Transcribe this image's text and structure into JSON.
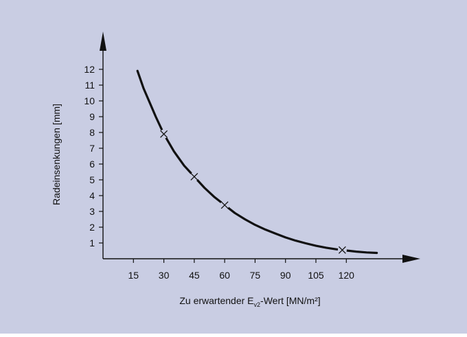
{
  "colors": {
    "panel_background": "#c9cde3",
    "ink": "#111111"
  },
  "chart_data": {
    "type": "line",
    "xlabel_main": "Zu erwartender E",
    "xlabel_sub": "v2",
    "xlabel_tail": "-Wert [MN/m²]",
    "ylabel": "Radeinsenkungen [mm]",
    "x_ticks": [
      15,
      30,
      45,
      60,
      75,
      90,
      105,
      120
    ],
    "y_ticks": [
      1,
      2,
      3,
      4,
      5,
      6,
      7,
      8,
      9,
      10,
      11,
      12
    ],
    "xlim": [
      0,
      138
    ],
    "ylim": [
      0,
      13
    ],
    "grid": false,
    "series": [
      {
        "values_xy": [
          [
            17,
            11.9
          ],
          [
            20,
            10.8
          ],
          [
            23,
            9.9
          ],
          [
            26,
            9.0
          ],
          [
            30,
            7.9
          ],
          [
            35,
            6.8
          ],
          [
            40,
            5.9
          ],
          [
            45,
            5.2
          ],
          [
            50,
            4.5
          ],
          [
            55,
            3.9
          ],
          [
            60,
            3.4
          ],
          [
            65,
            2.9
          ],
          [
            70,
            2.5
          ],
          [
            75,
            2.15
          ],
          [
            80,
            1.85
          ],
          [
            85,
            1.6
          ],
          [
            90,
            1.35
          ],
          [
            95,
            1.15
          ],
          [
            100,
            0.98
          ],
          [
            105,
            0.82
          ],
          [
            110,
            0.7
          ],
          [
            115,
            0.6
          ],
          [
            120,
            0.52
          ],
          [
            125,
            0.45
          ],
          [
            130,
            0.4
          ],
          [
            135,
            0.37
          ]
        ]
      }
    ],
    "markers": [
      {
        "x": 30,
        "y": 7.9
      },
      {
        "x": 45,
        "y": 5.2
      },
      {
        "x": 60,
        "y": 3.4
      },
      {
        "x": 118,
        "y": 0.55
      }
    ]
  }
}
